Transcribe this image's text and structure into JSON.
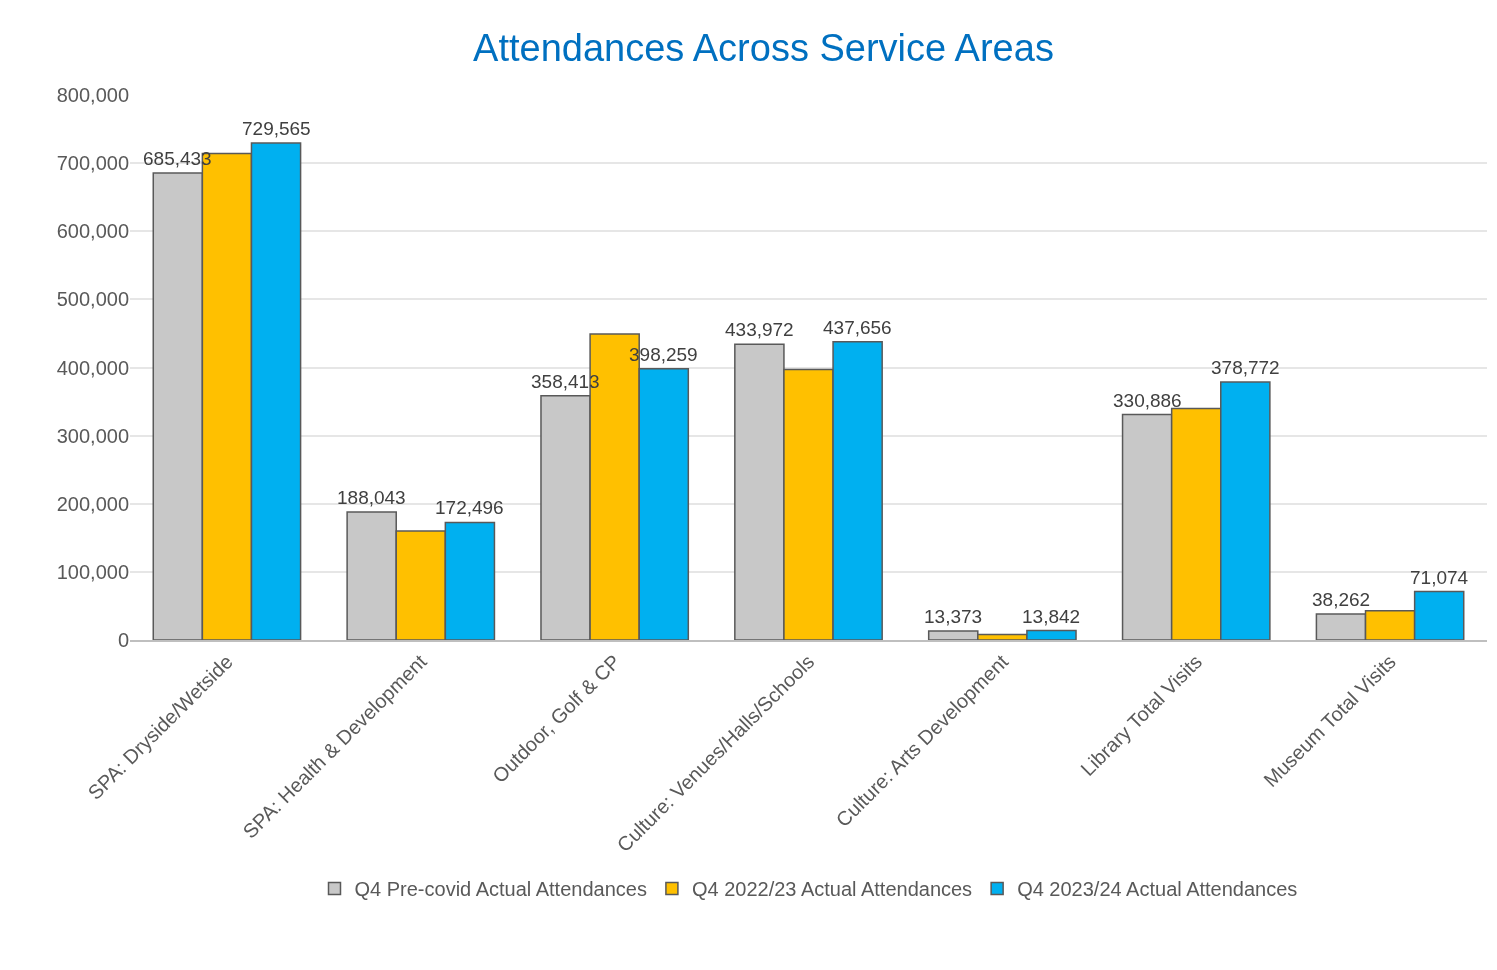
{
  "chart_data": {
    "type": "bar",
    "title": "Attendances Across Service Areas",
    "categories": [
      "SPA: Dryside/Wetside",
      "SPA: Health & Development",
      "Outdoor, Golf & CP",
      "Culture: Venues/Halls/Schools",
      "Culture: Arts Development",
      "Library Total Visits",
      "Museum Total Visits"
    ],
    "series": [
      {
        "name": "Q4 Pre-covid Actual Attendances",
        "color": "#c8c8c8",
        "values": [
          685433,
          188043,
          358413,
          433972,
          13373,
          330886,
          38262
        ],
        "value_labels": [
          "685,433",
          "188,043",
          "358,413",
          "433,972",
          "13,373",
          "330,886",
          "38,262"
        ]
      },
      {
        "name": "Q4 2022/23 Actual Attendances",
        "color": "#ffc000",
        "values": [
          714000,
          160000,
          449000,
          397000,
          8000,
          340000,
          43000
        ]
      },
      {
        "name": "Q4 2023/24 Actual Attendances",
        "color": "#00b0f0",
        "values": [
          729565,
          172496,
          398259,
          437656,
          13842,
          378772,
          71074
        ],
        "value_labels": [
          "729,565",
          "172,496",
          "398,259",
          "437,656",
          "13,842",
          "378,772",
          "71,074"
        ]
      }
    ],
    "ylim": [
      0,
      800000
    ],
    "yticks": [
      {
        "value": 0,
        "label": "0"
      },
      {
        "value": 100000,
        "label": "100,000"
      },
      {
        "value": 200000,
        "label": "200,000"
      },
      {
        "value": 300000,
        "label": "300,000"
      },
      {
        "value": 400000,
        "label": "400,000"
      },
      {
        "value": 500000,
        "label": "500,000"
      },
      {
        "value": 600000,
        "label": "600,000"
      },
      {
        "value": 700000,
        "label": "700,000"
      },
      {
        "value": 800000,
        "label": "800,000"
      }
    ],
    "grid": "y",
    "legend": "bottom"
  }
}
